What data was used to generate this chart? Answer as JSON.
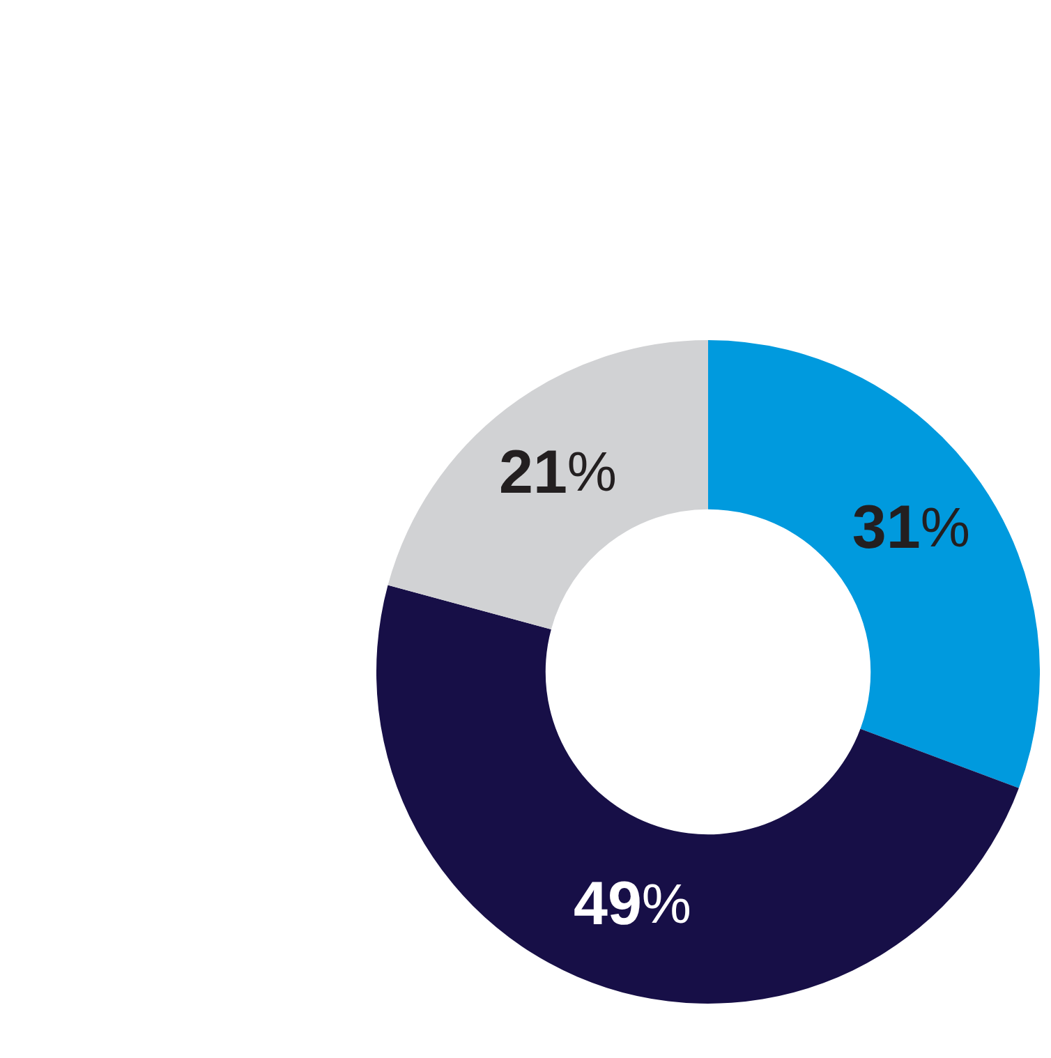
{
  "chart_data": {
    "type": "donut",
    "categories": [
      null,
      null,
      null
    ],
    "values": [
      31,
      49,
      21
    ],
    "colors": [
      "#009ade",
      "#170f47",
      "#d1d2d4"
    ],
    "value_labels": [
      "31%",
      "49%",
      "21%"
    ],
    "legend": false
  }
}
